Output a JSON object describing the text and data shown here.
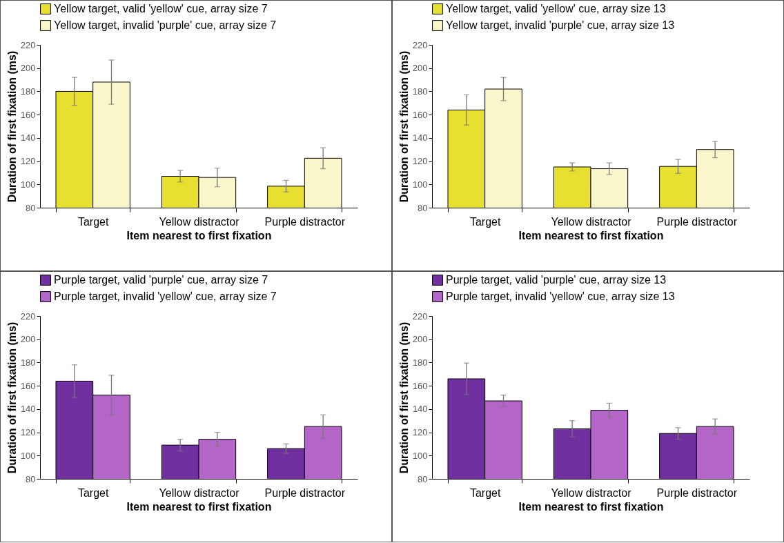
{
  "chart_data": [
    {
      "type": "bar",
      "categories": [
        "Target",
        "Yellow distractor",
        "Purple distractor"
      ],
      "xlabel": "Item nearest to first fixation",
      "ylabel": "Duration of first fixation (ms)",
      "ylim": [
        80,
        220
      ],
      "yticks": [
        80,
        100,
        120,
        140,
        160,
        180,
        200,
        220
      ],
      "legend": "top",
      "series": [
        {
          "name": "Yellow target, valid 'yellow' cue, array size 7",
          "color": "#e8e030",
          "values": [
            180,
            107,
            98.5
          ],
          "errors": [
            12,
            5,
            5
          ]
        },
        {
          "name": "Yellow target, invalid 'purple' cue, array size 7",
          "color": "#faf6cc",
          "values": [
            188,
            106,
            122.5
          ],
          "errors": [
            19,
            8,
            9
          ]
        }
      ]
    },
    {
      "type": "bar",
      "categories": [
        "Target",
        "Yellow distractor",
        "Purple distractor"
      ],
      "xlabel": "Item nearest to first fixation",
      "ylabel": "Duration of first fixation (ms)",
      "ylim": [
        80,
        220
      ],
      "yticks": [
        80,
        100,
        120,
        140,
        160,
        180,
        200,
        220
      ],
      "legend": "top",
      "series": [
        {
          "name": "Yellow target, valid 'yellow' cue, array size 13",
          "color": "#e8e030",
          "values": [
            164,
            115,
            115.5
          ],
          "errors": [
            13,
            3.5,
            6
          ]
        },
        {
          "name": "Yellow target, invalid 'purple' cue, array size 13",
          "color": "#faf6cc",
          "values": [
            182,
            113.5,
            130
          ],
          "errors": [
            10,
            5,
            7
          ]
        }
      ]
    },
    {
      "type": "bar",
      "categories": [
        "Target",
        "Yellow distractor",
        "Purple distractor"
      ],
      "xlabel": "Item nearest to first fixation",
      "ylabel": "Duration of first fixation (ms)",
      "ylim": [
        80,
        220
      ],
      "yticks": [
        80,
        100,
        120,
        140,
        160,
        180,
        200,
        220
      ],
      "legend": "top",
      "series": [
        {
          "name": "Purple target, valid 'purple' cue, array size 7",
          "color": "#7030a0",
          "values": [
            164,
            109,
            106
          ],
          "errors": [
            14,
            5,
            4
          ]
        },
        {
          "name": "Purple target, invalid 'yellow' cue, array size 7",
          "color": "#b366c8",
          "values": [
            152,
            114,
            125
          ],
          "errors": [
            17,
            6,
            10
          ]
        }
      ]
    },
    {
      "type": "bar",
      "categories": [
        "Target",
        "Yellow distractor",
        "Purple distractor"
      ],
      "xlabel": "Item nearest to first fixation",
      "ylabel": "Duration of first fixation (ms)",
      "ylim": [
        80,
        220
      ],
      "yticks": [
        80,
        100,
        120,
        140,
        160,
        180,
        200,
        220
      ],
      "legend": "top",
      "series": [
        {
          "name": "Purple target, valid 'purple' cue, array size 13",
          "color": "#7030a0",
          "values": [
            166,
            123,
            119
          ],
          "errors": [
            13.5,
            7,
            5
          ]
        },
        {
          "name": "Purple target, invalid 'yellow' cue, array size 13",
          "color": "#b366c8",
          "values": [
            147,
            139,
            125
          ],
          "errors": [
            5,
            6,
            6.5
          ]
        }
      ]
    }
  ]
}
